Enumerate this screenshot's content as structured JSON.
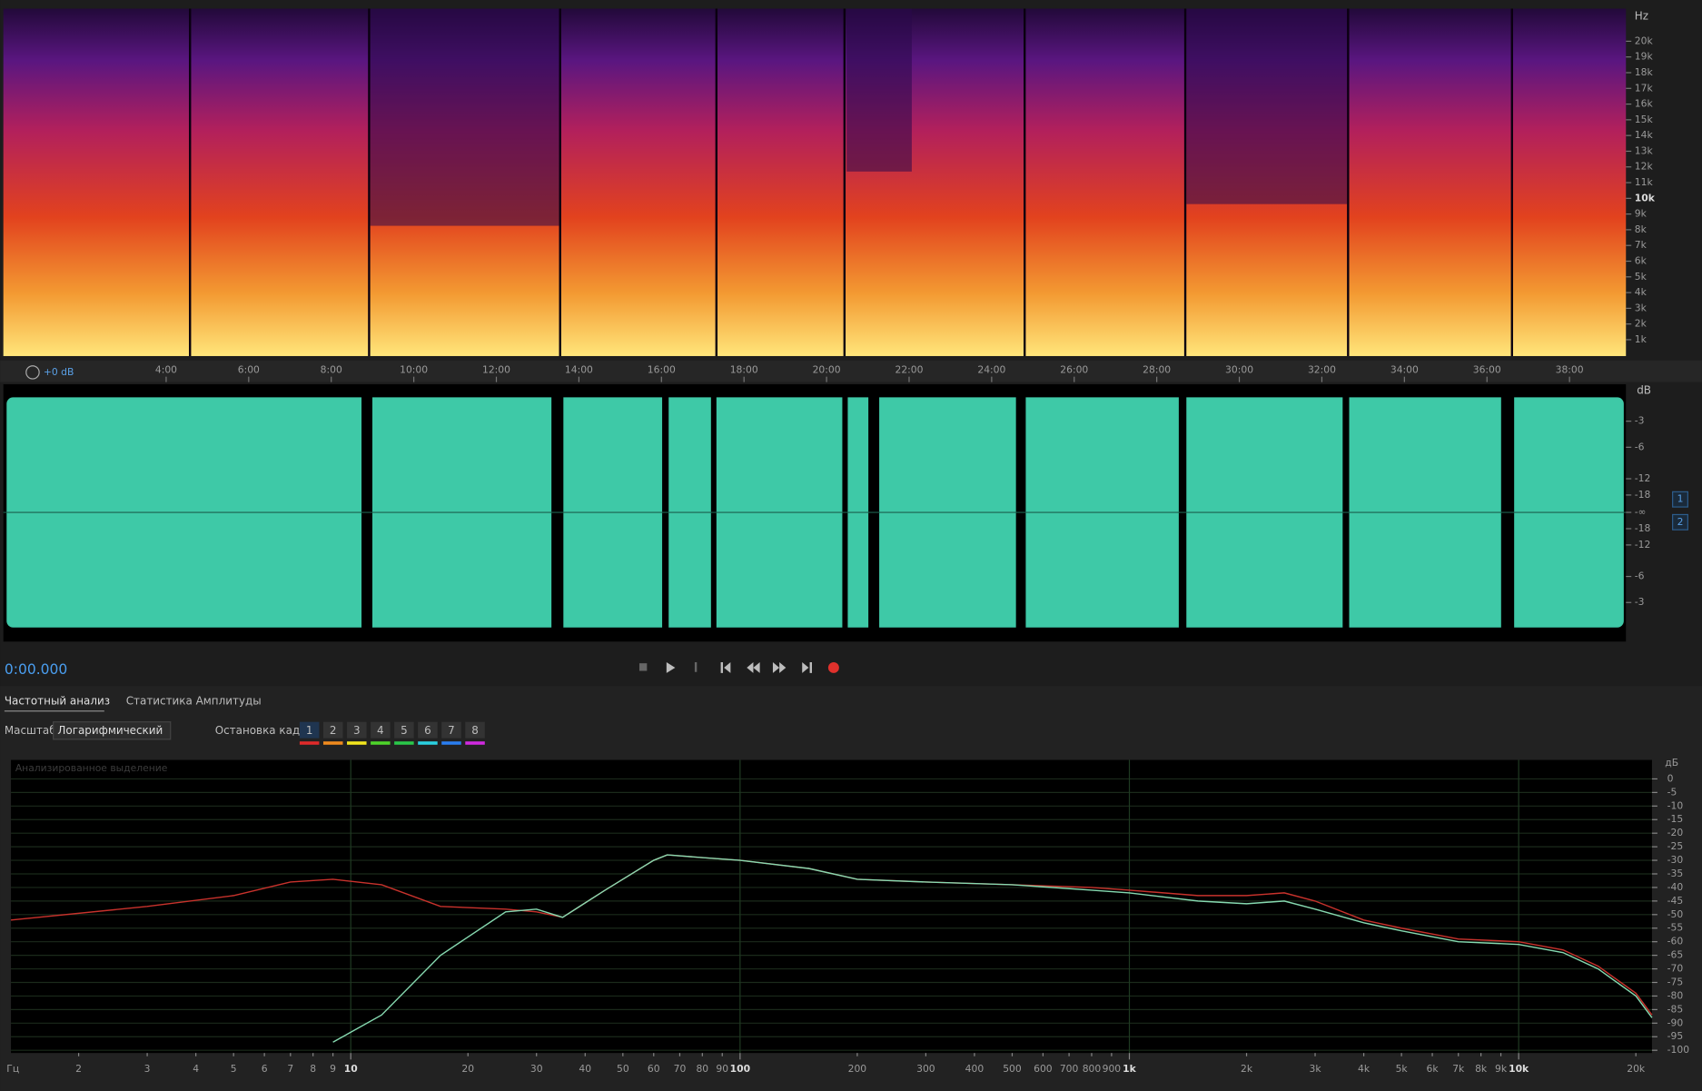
{
  "toolbar": {
    "gain": "+0 dB"
  },
  "spectrogram": {
    "unit": "Hz",
    "freq_labels": [
      "20k",
      "19k",
      "18k",
      "17k",
      "16k",
      "15k",
      "14k",
      "13k",
      "12k",
      "11k",
      "10k",
      "9k",
      "8k",
      "7k",
      "6k",
      "5k",
      "4k",
      "3k",
      "2k",
      "1k"
    ]
  },
  "timeline": {
    "labels": [
      "4:00",
      "6:00",
      "8:00",
      "10:00",
      "12:00",
      "14:00",
      "16:00",
      "18:00",
      "20:00",
      "22:00",
      "24:00",
      "26:00",
      "28:00",
      "30:00",
      "32:00",
      "34:00",
      "36:00",
      "38:00"
    ]
  },
  "waveform": {
    "unit": "dB",
    "db_labels": [
      "-3",
      "-6",
      "-12",
      "-18",
      "-∞",
      "-18",
      "-12",
      "-6",
      "-3"
    ],
    "channels": [
      "1",
      "2"
    ]
  },
  "transport": {
    "time": "0:00.000"
  },
  "panel": {
    "tabs": [
      "Частотный анализ",
      "Статистика Амплитуды"
    ],
    "scale_label": "Масштаб:",
    "scale_value": "Логарифмический",
    "freeze_label": "Остановка кадра:",
    "freeze_slots": [
      "1",
      "2",
      "3",
      "4",
      "5",
      "6",
      "7",
      "8"
    ]
  },
  "chart_data": {
    "type": "line",
    "annotation": "Анализированное выделение",
    "x_unit": "Гц",
    "y_unit": "дБ",
    "xlog": true,
    "grid": true,
    "xlim": [
      1.34,
      22000
    ],
    "ylim": [
      -101,
      7
    ],
    "xticks": [
      2,
      3,
      4,
      5,
      6,
      7,
      8,
      9,
      10,
      20,
      30,
      40,
      50,
      60,
      70,
      80,
      90,
      100,
      200,
      300,
      400,
      500,
      600,
      700,
      800,
      900,
      {
        "value": 1000,
        "label": "1k"
      },
      {
        "value": 2000,
        "label": "2k"
      },
      {
        "value": 3000,
        "label": "3k"
      },
      {
        "value": 4000,
        "label": "4k"
      },
      {
        "value": 5000,
        "label": "5k"
      },
      {
        "value": 6000,
        "label": "6k"
      },
      {
        "value": 7000,
        "label": "7k"
      },
      {
        "value": 8000,
        "label": "8k"
      },
      {
        "value": 9000,
        "label": "9k"
      },
      {
        "value": 10000,
        "label": "10k"
      },
      {
        "value": 20000,
        "label": "20k"
      }
    ],
    "yticks": [
      0,
      -5,
      -10,
      -15,
      -20,
      -25,
      -30,
      -35,
      -40,
      -45,
      -50,
      -55,
      -60,
      -65,
      -70,
      -75,
      -80,
      -85,
      -90,
      -95,
      -100
    ],
    "x": [
      1.34,
      3,
      5,
      7,
      9,
      12,
      17,
      25,
      30,
      35,
      45,
      60,
      65,
      80,
      100,
      150,
      200,
      300,
      500,
      800,
      1000,
      1500,
      2000,
      2500,
      3000,
      4000,
      5000,
      7000,
      10000,
      13000,
      16000,
      20000,
      22000
    ],
    "series": [
      {
        "color": "#c8322c",
        "values": [
          -52,
          -47,
          -43,
          -38,
          -37,
          -39,
          -47,
          -48,
          -49,
          -51,
          -41,
          -30,
          -28,
          -29,
          -30,
          -33,
          -37,
          -38,
          -39,
          -40,
          -41,
          -43,
          -43,
          -42,
          -45,
          -52,
          -55,
          -59,
          -60,
          -63,
          -69,
          -79,
          -87
        ]
      },
      {
        "color": "#86d9b0",
        "values": [
          null,
          null,
          null,
          null,
          -97,
          -87,
          -65,
          -49,
          -48,
          -51,
          -41,
          -30,
          -28,
          -29,
          -30,
          -33,
          -37,
          -38,
          -39,
          -41,
          -42,
          -45,
          -46,
          -45,
          -48,
          -53,
          -56,
          -60,
          -61,
          -64,
          -70,
          -80,
          -88
        ]
      }
    ]
  }
}
